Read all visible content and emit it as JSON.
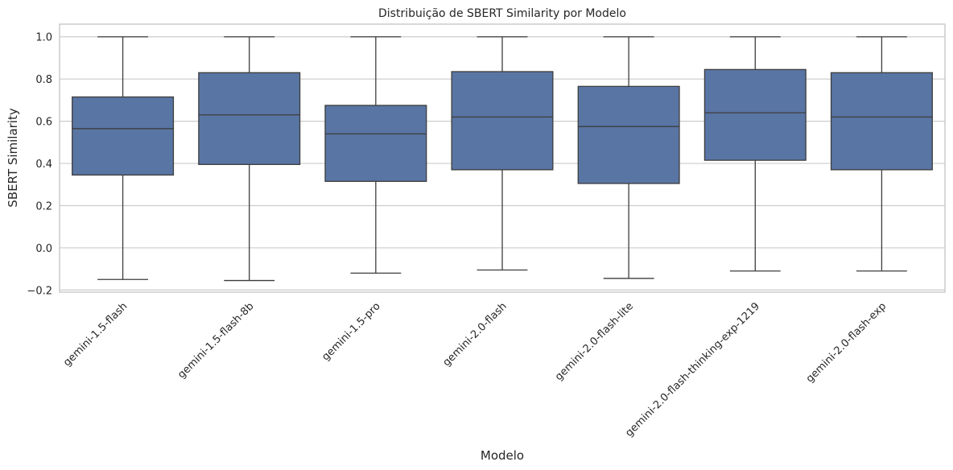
{
  "chart_data": {
    "type": "box",
    "title": "Distribuição de SBERT Similarity por Modelo",
    "xlabel": "Modelo",
    "ylabel": "SBERT Similarity",
    "ylim": [
      -0.21,
      1.06
    ],
    "yticks": [
      -0.2,
      0.0,
      0.2,
      0.4,
      0.6,
      0.8,
      1.0
    ],
    "ytick_labels": [
      "−0.2",
      "0.0",
      "0.2",
      "0.4",
      "0.6",
      "0.8",
      "1.0"
    ],
    "grid": true,
    "box_color": "#5975a4",
    "categories": [
      "gemini-1.5-flash",
      "gemini-1.5-flash-8b",
      "gemini-1.5-pro",
      "gemini-2.0-flash",
      "gemini-2.0-flash-lite",
      "gemini-2.0-flash-thinking-exp-1219",
      "gemini-2.0-flash-exp"
    ],
    "boxes": [
      {
        "whislo": -0.15,
        "q1": 0.345,
        "med": 0.565,
        "q3": 0.715,
        "whishi": 1.0
      },
      {
        "whislo": -0.155,
        "q1": 0.395,
        "med": 0.63,
        "q3": 0.83,
        "whishi": 1.0
      },
      {
        "whislo": -0.12,
        "q1": 0.315,
        "med": 0.54,
        "q3": 0.675,
        "whishi": 1.0
      },
      {
        "whislo": -0.105,
        "q1": 0.37,
        "med": 0.62,
        "q3": 0.835,
        "whishi": 1.0
      },
      {
        "whislo": -0.145,
        "q1": 0.305,
        "med": 0.575,
        "q3": 0.765,
        "whishi": 1.0
      },
      {
        "whislo": -0.11,
        "q1": 0.415,
        "med": 0.64,
        "q3": 0.845,
        "whishi": 1.0
      },
      {
        "whislo": -0.11,
        "q1": 0.37,
        "med": 0.62,
        "q3": 0.83,
        "whishi": 1.0
      }
    ]
  }
}
